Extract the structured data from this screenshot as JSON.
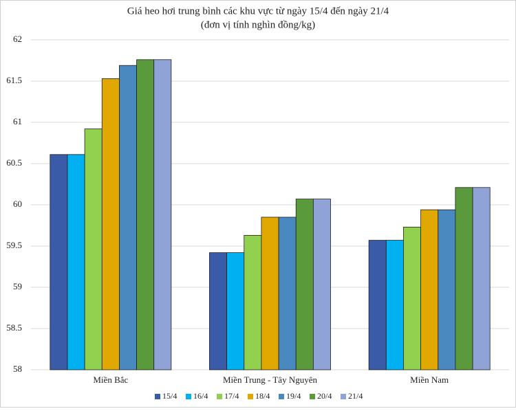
{
  "chart_data": {
    "type": "bar",
    "title": "Giá heo hơi trung bình các khu vực từ ngày 15/4 đến ngày 21/4",
    "subtitle": "(đơn vị tính nghìn đồng/kg)",
    "categories": [
      "Miền Bắc",
      "Miền Trung - Tây Nguyên",
      "Miền Nam"
    ],
    "series": [
      {
        "name": "15/4",
        "color": "#3a5ba8",
        "values": [
          60.61,
          59.42,
          59.57
        ]
      },
      {
        "name": "16/4",
        "color": "#00b0f0",
        "values": [
          60.61,
          59.42,
          59.57
        ]
      },
      {
        "name": "17/4",
        "color": "#92d050",
        "values": [
          60.92,
          59.63,
          59.73
        ]
      },
      {
        "name": "18/4",
        "color": "#e0a800",
        "values": [
          61.53,
          59.85,
          59.94
        ]
      },
      {
        "name": "19/4",
        "color": "#4a88c0",
        "values": [
          61.69,
          59.85,
          59.94
        ]
      },
      {
        "name": "20/4",
        "color": "#5b9a3c",
        "values": [
          61.76,
          60.07,
          60.21
        ]
      },
      {
        "name": "21/4",
        "color": "#8fa3d6",
        "values": [
          61.76,
          60.07,
          60.21
        ]
      }
    ],
    "ylim": [
      58,
      62
    ],
    "yticks": [
      58,
      58.5,
      59,
      59.5,
      60,
      60.5,
      61,
      61.5,
      62
    ],
    "grid": true
  }
}
